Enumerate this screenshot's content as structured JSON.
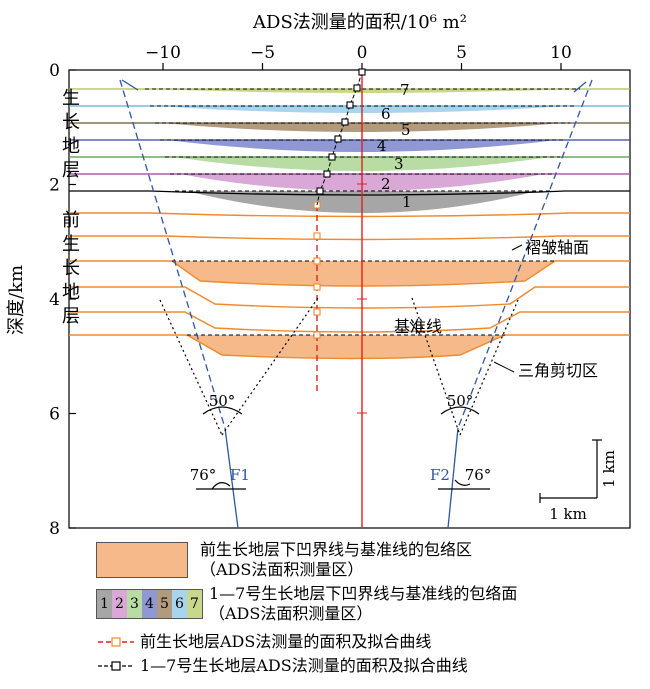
{
  "top_axis": {
    "title": "ADS法测量的面积/10⁶ m²",
    "ticks": [
      {
        "value": -10,
        "label": "−10"
      },
      {
        "value": -5,
        "label": "−5"
      },
      {
        "value": 0,
        "label": "0"
      },
      {
        "value": 5,
        "label": "5"
      },
      {
        "value": 10,
        "label": "10"
      }
    ]
  },
  "left_axis": {
    "title": "深度/km",
    "ticks": [
      {
        "value": 0,
        "label": "0"
      },
      {
        "value": 2,
        "label": "2"
      },
      {
        "value": 4,
        "label": "4"
      },
      {
        "value": 6,
        "label": "6"
      },
      {
        "value": 8,
        "label": "8"
      }
    ]
  },
  "growth_strata_label": [
    "生",
    "长",
    "地",
    "层"
  ],
  "pre_growth_strata_label": [
    "前",
    "生",
    "长",
    "地",
    "层"
  ],
  "growth_layers": [
    {
      "num": "7",
      "color": "#c8d88a"
    },
    {
      "num": "6",
      "color": "#a8d4ee"
    },
    {
      "num": "5",
      "color": "#b29a7c"
    },
    {
      "num": "4",
      "color": "#8f98d2"
    },
    {
      "num": "3",
      "color": "#b8dca4"
    },
    {
      "num": "2",
      "color": "#d9a8d6"
    },
    {
      "num": "1",
      "color": "#a6a6a6"
    }
  ],
  "annotations": {
    "fold_axis": "褶皱轴面",
    "triangle_shear": "三角剪切区",
    "datum": "基准线",
    "angle_top": "50°",
    "angle_bottom": "76°",
    "fault_left": "F1",
    "fault_right": "F2"
  },
  "scale": {
    "vertical": "1 km",
    "horizontal": "1 km"
  },
  "colors": {
    "orange_fill": "#f6b98a",
    "orange_line": "#f08a2c",
    "blue_dash": "#2f55a4",
    "red_axis": "#e02020"
  },
  "legend": {
    "orange_area": [
      "前生长地层下凹界线与基准线的包络区",
      "（ADS法面积测量区）"
    ],
    "growth_area": [
      "1—7号生长地层下凹界线与基准线的包络面",
      "（ADS法面积测量区）"
    ],
    "growth_swatch_nums": [
      "1",
      "2",
      "3",
      "4",
      "5",
      "6",
      "7"
    ],
    "pre_growth_curve": "前生长地层ADS法测量的面积及拟合曲线",
    "growth_curve": "1—7号生长地层ADS法测量的面积及拟合曲线"
  }
}
